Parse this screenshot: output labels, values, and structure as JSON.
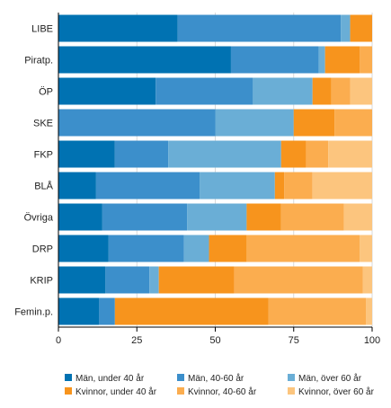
{
  "chart_data": {
    "type": "bar",
    "orientation": "horizontal",
    "stacked": true,
    "categories": [
      "LIBE",
      "Piratp.",
      "ÖP",
      "SKE",
      "FKP",
      "BLÅ",
      "Övriga",
      "DRP",
      "KRIP",
      "Femin.p."
    ],
    "series": [
      {
        "name": "Män, under 40 år",
        "color": "#0072b2",
        "values": [
          38,
          55,
          31,
          0,
          18,
          12,
          14,
          16,
          15,
          13
        ]
      },
      {
        "name": "Män, 40-60 år",
        "color": "#3c8fcb",
        "values": [
          52,
          28,
          31,
          50,
          17,
          33,
          27,
          24,
          14,
          5
        ]
      },
      {
        "name": "Män, över 60 år",
        "color": "#6aaed6",
        "values": [
          3,
          2,
          19,
          25,
          36,
          24,
          19,
          8,
          3,
          0
        ]
      },
      {
        "name": "Kvinnor, under 40 år",
        "color": "#f7941d",
        "values": [
          7,
          11,
          6,
          13,
          8,
          3,
          11,
          12,
          24,
          49
        ]
      },
      {
        "name": "Kvinnor, 40-60 år",
        "color": "#fbad4f",
        "values": [
          0,
          4,
          6,
          12,
          7,
          9,
          20,
          36,
          41,
          31
        ]
      },
      {
        "name": "Kvinnor, över 60 år",
        "color": "#fcc57e",
        "values": [
          0,
          0,
          7,
          0,
          14,
          19,
          9,
          4,
          3,
          2
        ]
      }
    ],
    "xticks": [
      0,
      25,
      50,
      75,
      100
    ],
    "xlim": [
      0,
      100
    ],
    "grid": true,
    "legend_position": "bottom"
  }
}
